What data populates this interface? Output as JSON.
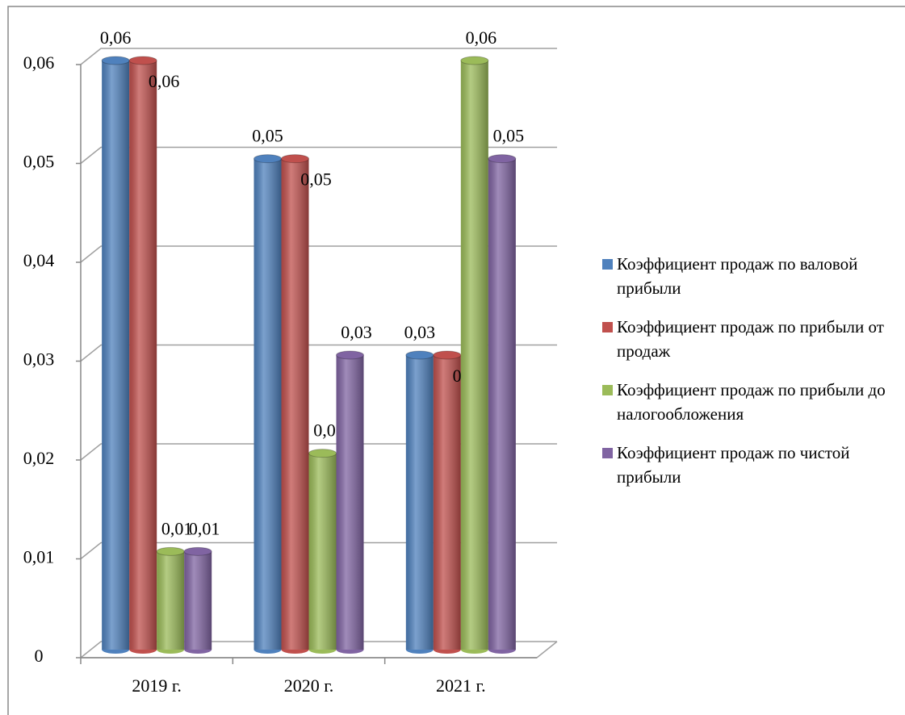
{
  "chart_data": {
    "type": "bar",
    "categories": [
      "2019 г.",
      "2020 г.",
      "2021 г."
    ],
    "series": [
      {
        "name": "Коэффициент продаж по валовой прибыли",
        "color": "#4f81bd",
        "values": [
          0.06,
          0.05,
          0.03
        ],
        "value_labels": [
          "0,06",
          "0,05",
          "0,03"
        ]
      },
      {
        "name": "Коэффициент продаж по прибыли от продаж",
        "color": "#c0504d",
        "values": [
          0.06,
          0.05,
          0.03
        ],
        "value_labels": [
          "0,06",
          "0,05",
          "0,03"
        ]
      },
      {
        "name": "Коэффициент продаж по прибыли до налогообложения",
        "color": "#9bbb59",
        "values": [
          0.01,
          0.02,
          0.06
        ],
        "value_labels": [
          "0,01",
          "0,02",
          "0,06"
        ]
      },
      {
        "name": "Коэффициент продаж по чистой прибыли",
        "color": "#8064a2",
        "values": [
          0.01,
          0.03,
          0.05
        ],
        "value_labels": [
          "0,01",
          "0,03",
          "0,05"
        ]
      }
    ],
    "ylim": [
      0,
      0.06
    ],
    "yticks": [
      0,
      {
        "value": 0.01,
        "label": "0,01"
      },
      {
        "value": 0.02,
        "label": "0,02"
      },
      {
        "value": 0.03,
        "label": "0,03"
      },
      {
        "value": 0.04,
        "label": "0,04"
      },
      {
        "value": 0.05,
        "label": "0,05"
      },
      {
        "value": 0.06,
        "label": "0,06"
      }
    ],
    "grid": true,
    "legend": "right"
  }
}
